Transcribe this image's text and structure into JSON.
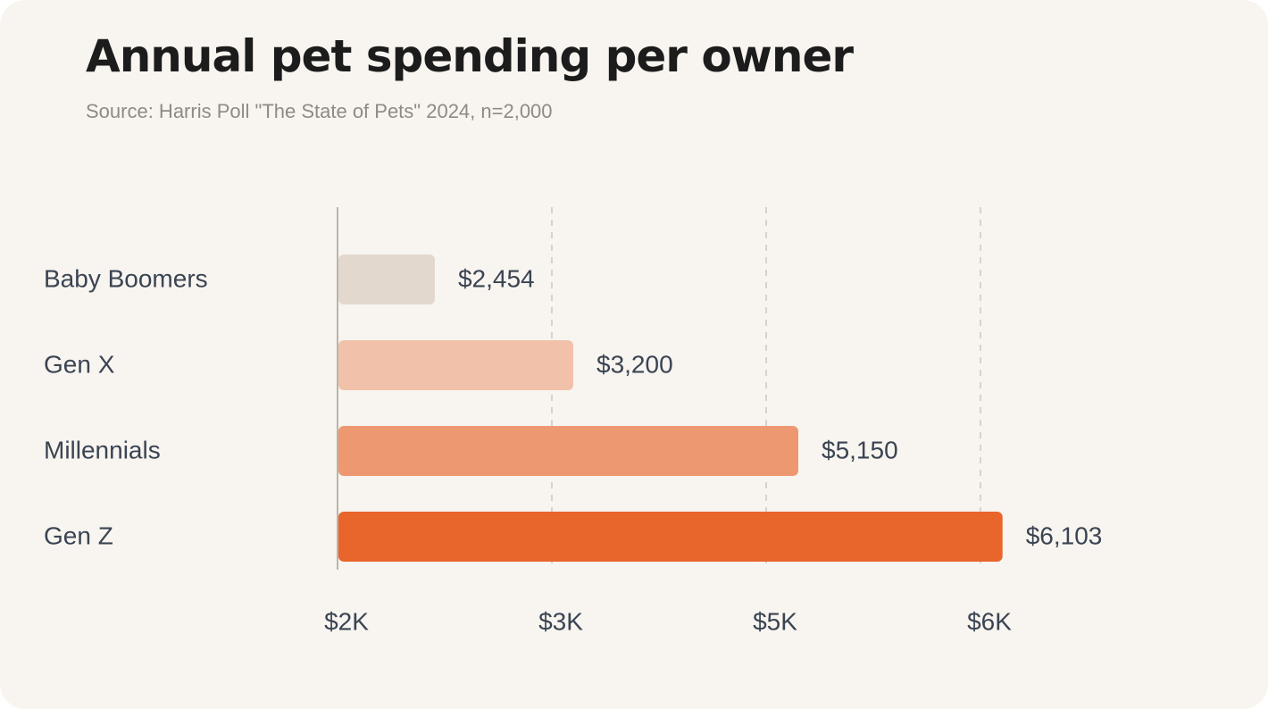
{
  "title": "Annual pet spending per owner",
  "subtitle": "Source: Harris Poll \"The State of Pets\" 2024, n=2,000",
  "chart_data": {
    "type": "bar",
    "orientation": "horizontal",
    "categories": [
      "Baby Boomers",
      "Gen X",
      "Millennials",
      "Gen Z"
    ],
    "values": [
      2454,
      3200,
      5150,
      6103
    ],
    "value_labels": [
      "$2,454",
      "$3,200",
      "$5,150",
      "$6,103"
    ],
    "bar_colors": [
      "#e2d8ce",
      "#f2c1aa",
      "#ee9872",
      "#e8652c"
    ],
    "xticks": [
      {
        "value": 2000,
        "label": "$2K"
      },
      {
        "value": 3000,
        "label": "$3K"
      },
      {
        "value": 5000,
        "label": "$5K"
      },
      {
        "value": 6000,
        "label": "$6K"
      }
    ],
    "grid": "vertical dashed",
    "xlabel": "",
    "ylabel": ""
  }
}
